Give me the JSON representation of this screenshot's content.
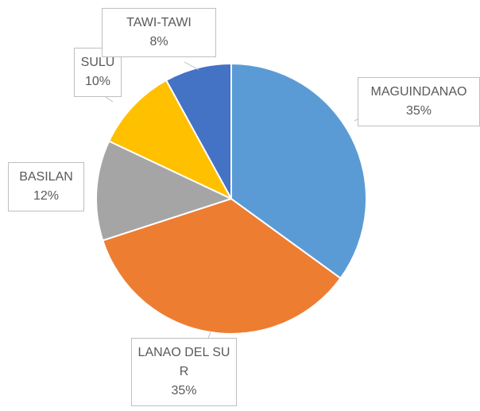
{
  "chart_data": {
    "type": "pie",
    "categories": [
      "MAGUINDANAO",
      "LANAO DEL SUR",
      "BASILAN",
      "SULU",
      "TAWI-TAWI"
    ],
    "values": [
      35,
      35,
      12,
      10,
      8
    ],
    "value_labels": [
      "35%",
      "35%",
      "12%",
      "10%",
      "8%"
    ],
    "colors": [
      "#5b9bd5",
      "#ed7d31",
      "#a5a5a5",
      "#ffc000",
      "#4472c4"
    ]
  }
}
